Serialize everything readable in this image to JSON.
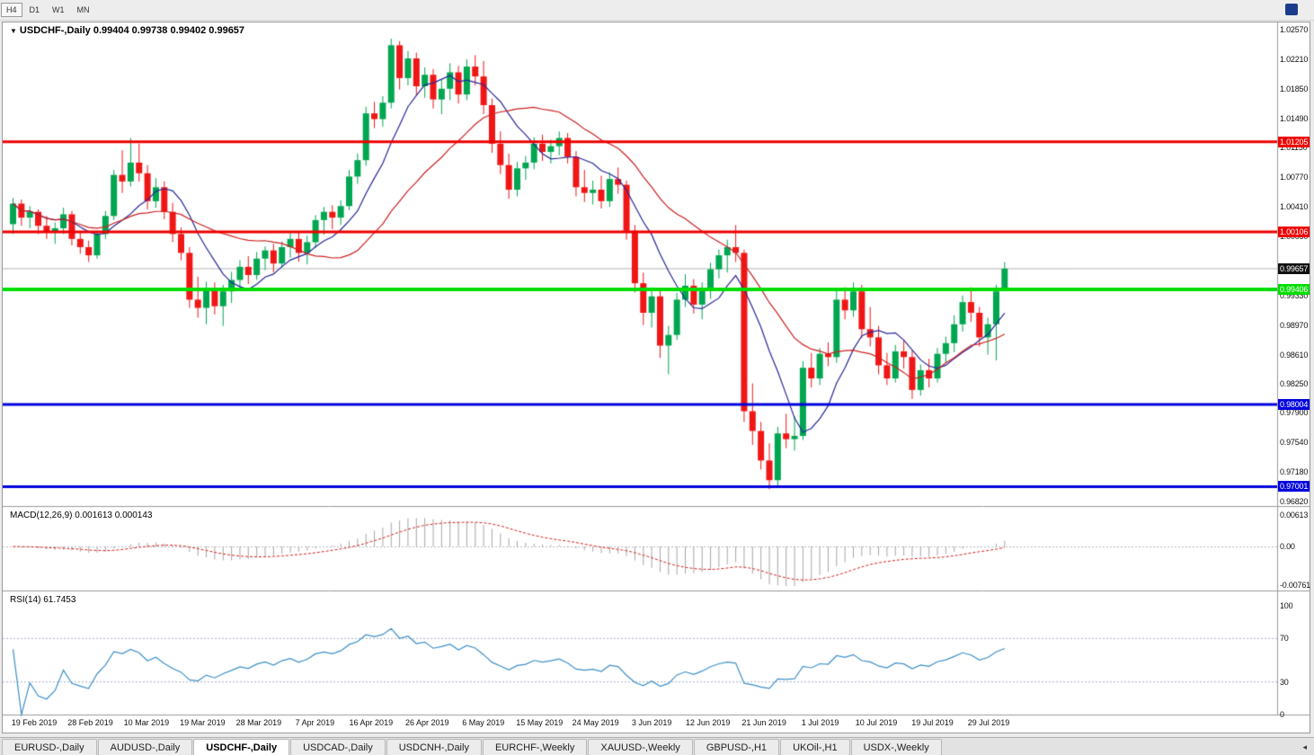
{
  "toolbar": {
    "buttons": [
      "H4",
      "D1",
      "W1",
      "MN"
    ],
    "boxed": "H4"
  },
  "chart": {
    "title_symbol": "USDCHF-,Daily",
    "title_ohlc": "0.99404 0.99738 0.99402 0.99657",
    "price_axis": [
      "1.02570",
      "1.02210",
      "1.01850",
      "1.01490",
      "1.01130",
      "1.00770",
      "1.00410",
      "1.00050",
      "0.99330",
      "0.98970",
      "0.98610",
      "0.98250",
      "0.97900",
      "0.97540",
      "0.97180",
      "0.96820"
    ],
    "hlines": [
      {
        "label": "1.01205",
        "value": 1.01205,
        "color": "#ee0000",
        "width": 3
      },
      {
        "label": "1.00106",
        "value": 1.00106,
        "color": "#ee0000",
        "width": 3
      },
      {
        "label": "0.99406",
        "value": 0.99406,
        "color": "#00dd00",
        "width": 4
      },
      {
        "label": "0.98004",
        "value": 0.98004,
        "color": "#0000dd",
        "width": 3
      },
      {
        "label": "0.97001",
        "value": 0.97001,
        "color": "#0000dd",
        "width": 3
      }
    ],
    "current": {
      "label": "0.99657",
      "value": 0.99657,
      "tag_bg": "#111111"
    },
    "dates": [
      "19 Feb 2019",
      "28 Feb 2019",
      "10 Mar 2019",
      "19 Mar 2019",
      "28 Mar 2019",
      "7 Apr 2019",
      "16 Apr 2019",
      "26 Apr 2019",
      "6 May 2019",
      "15 May 2019",
      "24 May 2019",
      "3 Jun 2019",
      "12 Jun 2019",
      "21 Jun 2019",
      "1 Jul 2019",
      "10 Jul 2019",
      "19 Jul 2019",
      "29 Jul 2019"
    ],
    "candles": [
      [
        1.002,
        1.0052,
        1.0008,
        1.0045
      ],
      [
        1.0045,
        1.005,
        1.0018,
        1.0028
      ],
      [
        1.0028,
        1.0042,
        1.0015,
        1.0035
      ],
      [
        1.0035,
        1.0038,
        1.0008,
        1.0018
      ],
      [
        1.0018,
        1.003,
        1.0002,
        1.001
      ],
      [
        1.001,
        1.0022,
        0.9996,
        1.0015
      ],
      [
        1.0015,
        1.004,
        1.0008,
        1.0032
      ],
      [
        1.0032,
        1.0036,
        0.9994,
        1.0002
      ],
      [
        1.0002,
        1.001,
        0.9984,
        0.9992
      ],
      [
        0.9992,
        1.0,
        0.9974,
        0.9982
      ],
      [
        0.9982,
        1.0012,
        0.9978,
        1.0008
      ],
      [
        1.0008,
        1.0036,
        1.0002,
        1.003
      ],
      [
        1.003,
        1.0086,
        1.0025,
        1.008
      ],
      [
        1.008,
        1.011,
        1.0058,
        1.0072
      ],
      [
        1.0072,
        1.0125,
        1.0066,
        1.0095
      ],
      [
        1.0095,
        1.0118,
        1.0072,
        1.0082
      ],
      [
        1.0082,
        1.0092,
        1.0038,
        1.0048
      ],
      [
        1.0048,
        1.0076,
        1.004,
        1.0065
      ],
      [
        1.0065,
        1.0072,
        1.0026,
        1.0035
      ],
      [
        1.0035,
        1.0046,
        0.9998,
        1.0008
      ],
      [
        1.0008,
        1.0016,
        0.9976,
        0.9985
      ],
      [
        0.9985,
        0.9992,
        0.9918,
        0.9928
      ],
      [
        0.9928,
        0.9956,
        0.9906,
        0.9918
      ],
      [
        0.9918,
        0.995,
        0.9898,
        0.9942
      ],
      [
        0.9942,
        0.9949,
        0.991,
        0.992
      ],
      [
        0.992,
        0.9946,
        0.9896,
        0.9938
      ],
      [
        0.9938,
        0.9962,
        0.9924,
        0.9952
      ],
      [
        0.9952,
        0.9976,
        0.994,
        0.9968
      ],
      [
        0.9968,
        0.9981,
        0.9947,
        0.9958
      ],
      [
        0.9958,
        0.9986,
        0.9952,
        0.9978
      ],
      [
        0.9978,
        0.9993,
        0.9964,
        0.9988
      ],
      [
        0.9988,
        0.9996,
        0.9961,
        0.9972
      ],
      [
        0.9972,
        0.9999,
        0.9967,
        0.9992
      ],
      [
        0.9992,
        1.0009,
        0.9979,
        1.0002
      ],
      [
        1.0002,
        1.0011,
        0.9974,
        0.9985
      ],
      [
        0.9985,
        1.0006,
        0.9971,
        0.9998
      ],
      [
        0.9998,
        1.0031,
        0.9991,
        1.0025
      ],
      [
        1.0025,
        1.0041,
        1.0007,
        1.0035
      ],
      [
        1.0035,
        1.0043,
        1.0014,
        1.0028
      ],
      [
        1.0028,
        1.0049,
        1.0019,
        1.0042
      ],
      [
        1.0042,
        1.0086,
        1.0037,
        1.0078
      ],
      [
        1.0078,
        1.0106,
        1.0069,
        1.0098
      ],
      [
        1.0098,
        1.0163,
        1.0091,
        1.0155
      ],
      [
        1.0155,
        1.0169,
        1.0137,
        1.0148
      ],
      [
        1.0148,
        1.0176,
        1.0139,
        1.0168
      ],
      [
        1.0168,
        1.0246,
        1.0161,
        1.0238
      ],
      [
        1.0238,
        1.0243,
        1.0184,
        1.0198
      ],
      [
        1.0198,
        1.0231,
        1.0189,
        1.0222
      ],
      [
        1.0222,
        1.0229,
        1.0177,
        1.0188
      ],
      [
        1.0188,
        1.0211,
        1.0174,
        1.0202
      ],
      [
        1.0202,
        1.0209,
        1.0161,
        1.0172
      ],
      [
        1.0172,
        1.0196,
        1.0154,
        1.0185
      ],
      [
        1.0185,
        1.0216,
        1.0171,
        1.0205
      ],
      [
        1.0205,
        1.0213,
        1.0167,
        1.0178
      ],
      [
        1.0178,
        1.0221,
        1.0171,
        1.0212
      ],
      [
        1.0212,
        1.0226,
        1.0189,
        1.02
      ],
      [
        1.02,
        1.0219,
        1.0154,
        1.0165
      ],
      [
        1.0165,
        1.0173,
        1.0107,
        1.0118
      ],
      [
        1.0118,
        1.0133,
        1.0081,
        1.0092
      ],
      [
        1.0092,
        1.0106,
        1.0051,
        1.0062
      ],
      [
        1.0062,
        1.0096,
        1.0054,
        1.0088
      ],
      [
        1.0088,
        1.0103,
        1.0074,
        1.0095
      ],
      [
        1.0095,
        1.0126,
        1.0087,
        1.0118
      ],
      [
        1.0118,
        1.0129,
        1.0097,
        1.0108
      ],
      [
        1.0108,
        1.0123,
        1.0094,
        1.0115
      ],
      [
        1.0115,
        1.0133,
        1.0104,
        1.0125
      ],
      [
        1.0125,
        1.0131,
        1.0094,
        1.0102
      ],
      [
        1.0102,
        1.0109,
        1.0054,
        1.0065
      ],
      [
        1.0065,
        1.0086,
        1.0047,
        1.0058
      ],
      [
        1.0058,
        1.0073,
        1.0044,
        1.0062
      ],
      [
        1.0062,
        1.0079,
        1.0039,
        1.0048
      ],
      [
        1.0048,
        1.0083,
        1.0041,
        1.0075
      ],
      [
        1.0075,
        1.0089,
        1.0057,
        1.0068
      ],
      [
        1.0068,
        1.0073,
        1.0001,
        1.0012
      ],
      [
        1.0012,
        1.0019,
        0.9937,
        0.9948
      ],
      [
        0.9948,
        0.9961,
        0.9897,
        0.9912
      ],
      [
        0.9912,
        0.9943,
        0.9894,
        0.9932
      ],
      [
        0.9932,
        0.9939,
        0.9857,
        0.9872
      ],
      [
        0.9872,
        0.9896,
        0.9837,
        0.9885
      ],
      [
        0.9885,
        0.9936,
        0.9879,
        0.9928
      ],
      [
        0.9928,
        0.9959,
        0.9919,
        0.9945
      ],
      [
        0.9945,
        0.9953,
        0.9911,
        0.9922
      ],
      [
        0.9922,
        0.9949,
        0.9904,
        0.994
      ],
      [
        0.994,
        0.9973,
        0.9929,
        0.9965
      ],
      [
        0.9965,
        0.9989,
        0.9954,
        0.9982
      ],
      [
        0.9982,
        1.0001,
        0.9961,
        0.9992
      ],
      [
        0.9992,
        1.0019,
        0.9974,
        0.9985
      ],
      [
        0.9985,
        0.9989,
        0.9779,
        0.9792
      ],
      [
        0.9792,
        0.9826,
        0.9751,
        0.9768
      ],
      [
        0.9768,
        0.9779,
        0.9721,
        0.9732
      ],
      [
        0.9732,
        0.9753,
        0.9697,
        0.9708
      ],
      [
        0.9708,
        0.9773,
        0.9699,
        0.9765
      ],
      [
        0.9765,
        0.9789,
        0.9747,
        0.9758
      ],
      [
        0.9758,
        0.9786,
        0.9744,
        0.9762
      ],
      [
        0.9762,
        0.9853,
        0.9757,
        0.9845
      ],
      [
        0.9845,
        0.9863,
        0.9821,
        0.9832
      ],
      [
        0.9832,
        0.9869,
        0.9824,
        0.9862
      ],
      [
        0.9862,
        0.9876,
        0.9847,
        0.9858
      ],
      [
        0.9858,
        0.9939,
        0.9851,
        0.9928
      ],
      [
        0.9928,
        0.9943,
        0.9904,
        0.9915
      ],
      [
        0.9915,
        0.9949,
        0.9907,
        0.9938
      ],
      [
        0.9938,
        0.9946,
        0.9881,
        0.9892
      ],
      [
        0.9892,
        0.9919,
        0.9871,
        0.9882
      ],
      [
        0.9882,
        0.9896,
        0.9837,
        0.9848
      ],
      [
        0.9848,
        0.9863,
        0.9824,
        0.9832
      ],
      [
        0.9832,
        0.9873,
        0.9827,
        0.9865
      ],
      [
        0.9865,
        0.9879,
        0.9844,
        0.9858
      ],
      [
        0.9858,
        0.9866,
        0.9807,
        0.9818
      ],
      [
        0.9818,
        0.9849,
        0.9811,
        0.9842
      ],
      [
        0.9842,
        0.9856,
        0.9821,
        0.9832
      ],
      [
        0.9832,
        0.9869,
        0.9827,
        0.9862
      ],
      [
        0.9862,
        0.9883,
        0.9851,
        0.9875
      ],
      [
        0.9875,
        0.9909,
        0.9864,
        0.9898
      ],
      [
        0.9898,
        0.9933,
        0.9889,
        0.9925
      ],
      [
        0.9925,
        0.9943,
        0.9901,
        0.9912
      ],
      [
        0.9912,
        0.9919,
        0.9871,
        0.9882
      ],
      [
        0.9882,
        0.9906,
        0.9861,
        0.9898
      ],
      [
        0.9898,
        0.9946,
        0.9854,
        0.9938
      ],
      [
        0.99404,
        0.99738,
        0.99402,
        0.99657
      ]
    ]
  },
  "macd": {
    "title": "MACD(12,26,9)",
    "values": "0.001613 0.000143",
    "axis": [
      {
        "label": "0.00613",
        "value": 0.00613
      },
      {
        "label": "0.00",
        "value": 0
      },
      {
        "label": "-0.00761",
        "value": -0.00761
      }
    ]
  },
  "rsi": {
    "title": "RSI(14)",
    "value": "61.7453",
    "axis": [
      {
        "label": "100",
        "value": 100
      },
      {
        "label": "70",
        "value": 70
      },
      {
        "label": "30",
        "value": 30
      },
      {
        "label": "0",
        "value": 0
      }
    ],
    "levels": [
      70,
      30
    ]
  },
  "tabs": [
    "EURUSD-,Daily",
    "AUDUSD-,Daily",
    "USDCHF-,Daily",
    "USDCAD-,Daily",
    "USDCNH-,Daily",
    "EURCHF-,Weekly",
    "XAUUSD-,Weekly",
    "GBPUSD-,H1",
    "UKOil-,H1",
    "USDX-,Weekly"
  ],
  "active_tab": "USDCHF-,Daily",
  "colors": {
    "bull": "#00a650",
    "bear": "#f01616",
    "ma_fast": "#26269a",
    "ma_slow": "#cc2020",
    "macd_hist": "#a6a6a6",
    "macd_signal": "#d42020",
    "rsi_line": "#3d8fc8",
    "price_line": "#b4b4b4",
    "separator": "#9a9a9a"
  }
}
